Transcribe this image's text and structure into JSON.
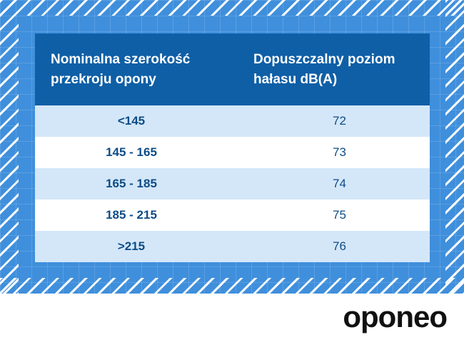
{
  "table": {
    "headers": [
      "Nominalna szerokość\nprzekroju opony",
      "Dopuszczalny poziom\nhałasu dB(A)"
    ],
    "rows": [
      {
        "width": "<145",
        "noise": "72"
      },
      {
        "width": "145 - 165",
        "noise": "73"
      },
      {
        "width": "165 - 185",
        "noise": "74"
      },
      {
        "width": "185 - 215",
        "noise": "75"
      },
      {
        "width": ">215",
        "noise": "76"
      }
    ]
  },
  "brand": {
    "logo_text": "oponeo"
  },
  "colors": {
    "frame": "#3f8fdc",
    "header_bg": "#0f5fa6",
    "row_alt": "#d4e7f9",
    "text": "#0d4c86"
  }
}
